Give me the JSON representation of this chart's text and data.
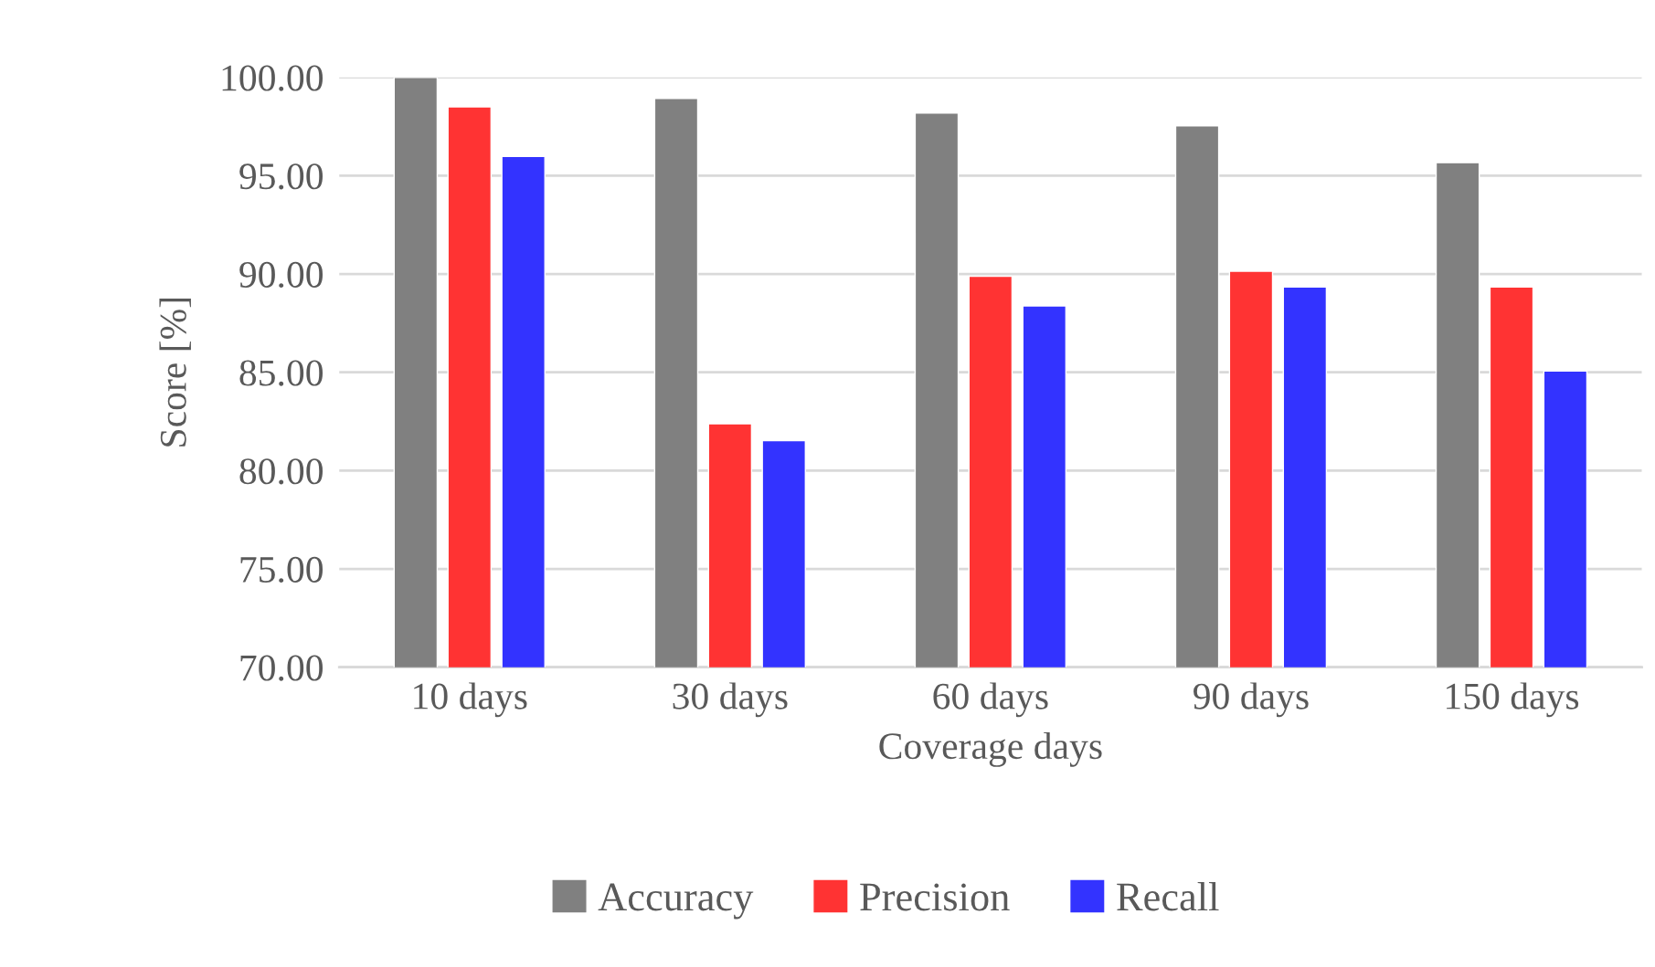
{
  "chart_data": {
    "type": "bar",
    "xlabel": "Coverage days",
    "ylabel": "Score [%]",
    "categories": [
      "10 days",
      "30 days",
      "60 days",
      "90 days",
      "150 days"
    ],
    "series": [
      {
        "name": "Accuracy",
        "color": "#808080",
        "values": [
          100.0,
          98.93,
          98.18,
          97.54,
          95.66
        ]
      },
      {
        "name": "Precision",
        "color": "#ff3333",
        "values": [
          98.5,
          82.38,
          89.88,
          90.14,
          89.34
        ]
      },
      {
        "name": "Recall",
        "color": "#3333ff",
        "values": [
          95.98,
          81.52,
          88.38,
          89.34,
          85.06
        ]
      }
    ],
    "ylim": [
      70,
      100
    ],
    "yticks": [
      {
        "value": 70,
        "label": "70.00"
      },
      {
        "value": 75,
        "label": "75.00"
      },
      {
        "value": 80,
        "label": "80.00"
      },
      {
        "value": 85,
        "label": "85.00"
      },
      {
        "value": 90,
        "label": "90.00"
      },
      {
        "value": 95,
        "label": "95.00"
      },
      {
        "value": 100,
        "label": "100.00"
      }
    ],
    "grid": "y",
    "legend": "bottom"
  }
}
